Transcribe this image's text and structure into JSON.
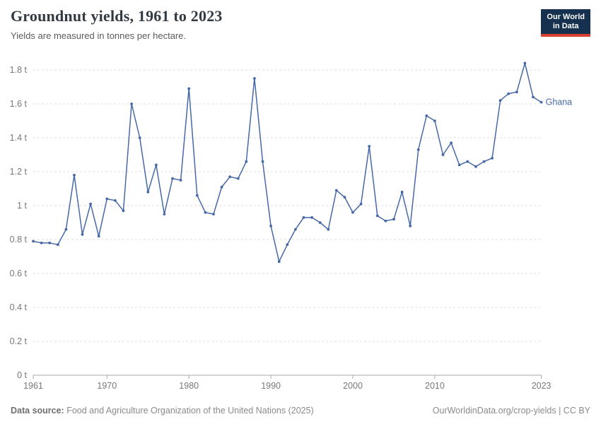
{
  "header": {
    "title": "Groundnut yields, 1961 to 2023",
    "subtitle": "Yields are measured in tonnes per hectare.",
    "logo": {
      "line1": "Our World",
      "line2": "in Data"
    }
  },
  "chart_data": {
    "type": "line",
    "title": "Groundnut yields, 1961 to 2023",
    "ylabel": "tonnes per hectare",
    "unit_suffix": " t",
    "ylim": [
      0,
      1.8
    ],
    "ytick_step": 0.2,
    "xticks": [
      1961,
      1970,
      1980,
      1990,
      2000,
      2010,
      2023
    ],
    "grid": "horizontal-dashed",
    "legend_position": "end-of-line-label",
    "x": [
      1961,
      1962,
      1963,
      1964,
      1965,
      1966,
      1967,
      1968,
      1969,
      1970,
      1971,
      1972,
      1973,
      1974,
      1975,
      1976,
      1977,
      1978,
      1979,
      1980,
      1981,
      1982,
      1983,
      1984,
      1985,
      1986,
      1987,
      1988,
      1989,
      1990,
      1991,
      1992,
      1993,
      1994,
      1995,
      1996,
      1997,
      1998,
      1999,
      2000,
      2001,
      2002,
      2003,
      2004,
      2005,
      2006,
      2007,
      2008,
      2009,
      2010,
      2011,
      2012,
      2013,
      2014,
      2015,
      2016,
      2017,
      2018,
      2019,
      2020,
      2021,
      2022,
      2023
    ],
    "series": [
      {
        "name": "Ghana",
        "color": "#4768a6",
        "values": [
          0.79,
          0.78,
          0.78,
          0.77,
          0.86,
          1.18,
          0.83,
          1.01,
          0.82,
          1.04,
          1.03,
          0.97,
          1.6,
          1.4,
          1.08,
          1.24,
          0.95,
          1.16,
          1.15,
          1.69,
          1.06,
          0.96,
          0.95,
          1.11,
          1.17,
          1.16,
          1.26,
          1.75,
          1.26,
          0.88,
          0.67,
          0.77,
          0.86,
          0.93,
          0.93,
          0.9,
          0.86,
          1.09,
          1.05,
          0.96,
          1.01,
          1.35,
          0.94,
          0.91,
          0.92,
          1.08,
          0.88,
          1.33,
          1.53,
          1.5,
          1.3,
          1.37,
          1.24,
          1.26,
          1.23,
          1.26,
          1.28,
          1.62,
          1.66,
          1.67,
          1.84,
          1.64,
          1.61
        ]
      }
    ]
  },
  "colors": {
    "grid": "#dedede",
    "axis": "#a8a8a8",
    "tick_label": "#787878",
    "logo_bg": "#15314f",
    "logo_bar": "#dc3e32"
  },
  "footer": {
    "source_label": "Data source:",
    "source_text": " Food and Agriculture Organization of the United Nations (2025)",
    "right_text": "OurWorldinData.org/crop-yields | CC BY"
  }
}
